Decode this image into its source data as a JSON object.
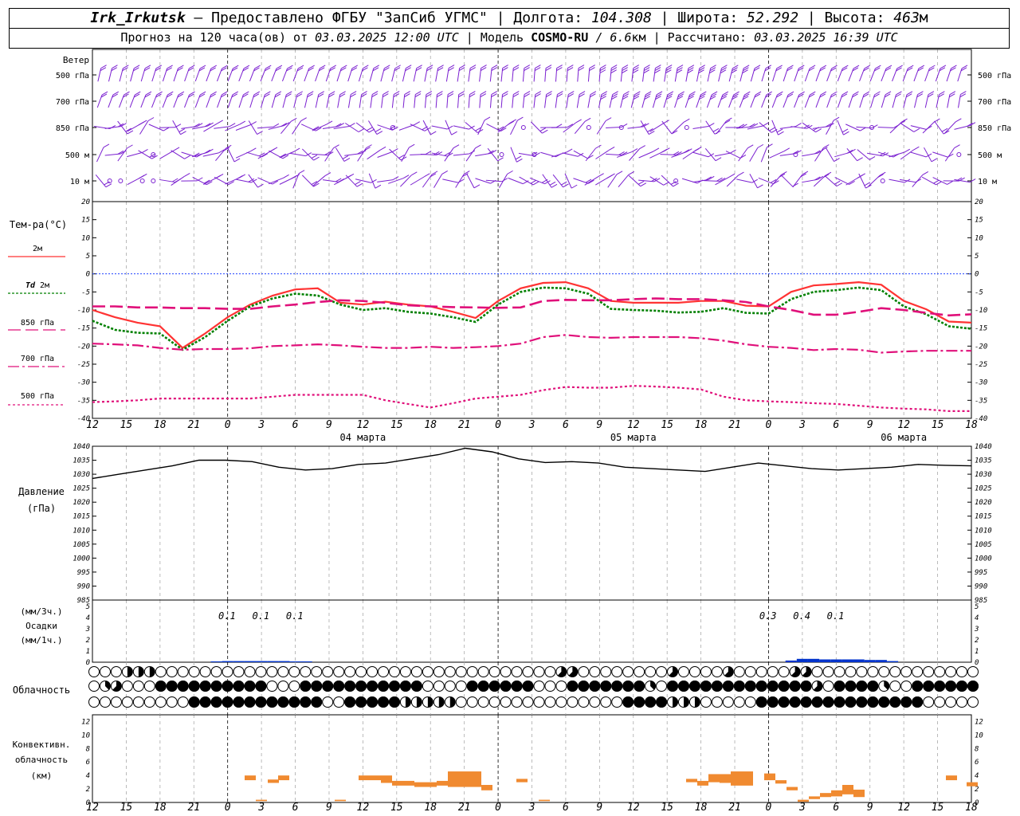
{
  "header": {
    "station": "Irk_Irkutsk",
    "provider": " — Предоставлено ФГБУ \"ЗапСиб УГМС\" | Долгота: ",
    "lon": "104.308",
    "lat_label": " | Широта: ",
    "lat": "52.292",
    "alt_label": " | Высота: ",
    "alt": "463",
    "alt_unit": "м",
    "forecast_prefix": "Прогноз на 120 часа(ов) от ",
    "forecast_from": "03.03.2025 12:00 UTC",
    "model_label": " | Модель ",
    "model": "COSMO-RU",
    "model_res": " / 6.6",
    "model_res_unit": "км",
    "calc_label": " | Рассчитано: ",
    "calc_time": "03.03.2025 16:39 UTC"
  },
  "wind_panel": {
    "title": "Ветер",
    "levels": [
      "500 гПа",
      "700 гПа",
      "850 гПа",
      "500 м",
      "10 м"
    ]
  },
  "temp_panel": {
    "title": "Тем-ра(°C)",
    "legend": [
      "2м",
      "Td 2м",
      "850 гПа",
      "700 гПа",
      "500 гПа"
    ],
    "td_prefix": "Td",
    "td_suffix": "2м"
  },
  "pressure_panel": {
    "title": "Давление",
    "unit": "(гПа)"
  },
  "precip_panel": {
    "unit1": "(мм/3ч.)",
    "title": "Осадки",
    "unit2": "(мм/1ч.)"
  },
  "cloud_panel": {
    "title": "Облачность"
  },
  "conv_panel": {
    "title1": "Конвективн.",
    "title2": "облачность",
    "unit": "(км)"
  },
  "colors": {
    "t2m": "#ff3333",
    "td": "#008000",
    "t850": "#e0107a",
    "t700": "#e0107a",
    "t500": "#e0107a",
    "pressure": "#000000",
    "precip": "#0033cc",
    "conv": "#f08a30",
    "wind": "#7a1fd0",
    "zero": "#2244ff"
  },
  "chart_data": {
    "type": "meteogram",
    "time_axis": {
      "hours_utc": [
        "12",
        "15",
        "18",
        "21",
        "0",
        "3",
        "6",
        "9",
        "12",
        "15",
        "18",
        "21",
        "0",
        "3",
        "6",
        "9",
        "12",
        "15",
        "18",
        "21",
        "0",
        "3",
        "6",
        "9",
        "12",
        "15",
        "18"
      ],
      "date_labels": [
        "04 марта",
        "05 марта",
        "06 марта"
      ]
    },
    "temperature": {
      "ylim": [
        -40,
        20
      ],
      "ticks": [
        20,
        15,
        10,
        5,
        0,
        -5,
        -10,
        -15,
        -20,
        -25,
        -30,
        -35,
        -40
      ],
      "series": [
        {
          "name": "2м",
          "values": [
            -10,
            -12,
            -13.5,
            -14.5,
            -20.5,
            -16.5,
            -12,
            -8.5,
            -6,
            -4.3,
            -4,
            -8,
            -8.5,
            -7.7,
            -8.5,
            -9,
            -10.5,
            -12.2,
            -7.5,
            -4,
            -2.5,
            -2.3,
            -4,
            -7.5,
            -8,
            -8,
            -8,
            -7.5,
            -7.5,
            -8.8,
            -9,
            -5,
            -3.2,
            -2.8,
            -2.3,
            -3,
            -7.5,
            -9.8,
            -13.2,
            -13.5
          ]
        },
        {
          "name": "Td 2м",
          "values": [
            -13,
            -15.5,
            -16.3,
            -16.5,
            -21,
            -17.5,
            -13,
            -9,
            -6.8,
            -5.5,
            -6,
            -8.5,
            -10,
            -9.5,
            -10.5,
            -11,
            -12,
            -13.3,
            -8.5,
            -5,
            -3.8,
            -4,
            -5.5,
            -9.7,
            -10,
            -10.2,
            -10.7,
            -10.5,
            -9.5,
            -10.8,
            -11,
            -7,
            -5,
            -4.5,
            -3.8,
            -4.5,
            -9,
            -11.2,
            -14.5,
            -15.2
          ]
        },
        {
          "name": "850 гПа",
          "values": [
            -9,
            -9,
            -9.3,
            -9.3,
            -9.5,
            -9.5,
            -9.7,
            -9.7,
            -9,
            -8.5,
            -7.8,
            -7.3,
            -7.5,
            -8,
            -8.7,
            -9,
            -9.2,
            -9.3,
            -9.4,
            -9.3,
            -7.5,
            -7.2,
            -7.3,
            -7.3,
            -7,
            -6.8,
            -7,
            -7,
            -7.3,
            -7.8,
            -9,
            -10,
            -11.3,
            -11.3,
            -10.5,
            -9.5,
            -10,
            -10.8,
            -11.5,
            -11.2
          ]
        },
        {
          "name": "700 гПа",
          "values": [
            -19.3,
            -19.5,
            -19.8,
            -20.5,
            -21,
            -20.8,
            -20.8,
            -20.6,
            -20,
            -19.8,
            -19.5,
            -19.8,
            -20.2,
            -20.5,
            -20.5,
            -20.2,
            -20.5,
            -20.3,
            -20,
            -19.3,
            -17.5,
            -16.9,
            -17.5,
            -17.7,
            -17.5,
            -17.5,
            -17.5,
            -17.8,
            -18.5,
            -19.5,
            -20.2,
            -20.5,
            -21.1,
            -20.8,
            -21,
            -21.8,
            -21.5,
            -21.3,
            -21.3,
            -21.3
          ]
        },
        {
          "name": "500 гПа",
          "values": [
            -35.5,
            -35.3,
            -35,
            -34.5,
            -34.5,
            -34.5,
            -34.5,
            -34.5,
            -34,
            -33.5,
            -33.5,
            -33.5,
            -33.5,
            -35,
            -36,
            -37,
            -35.8,
            -34.5,
            -34,
            -33.5,
            -32.2,
            -31.3,
            -31.5,
            -31.5,
            -31,
            -31.2,
            -31.5,
            -32,
            -34,
            -35,
            -35.3,
            -35.5,
            -35.8,
            -36,
            -36.5,
            -37,
            -37.3,
            -37.5,
            -38,
            -38
          ]
        }
      ]
    },
    "pressure": {
      "ylim": [
        985,
        1040
      ],
      "ticks": [
        1040,
        1035,
        1030,
        1025,
        1020,
        1015,
        1010,
        1005,
        1000,
        995,
        990,
        985
      ],
      "values": [
        1028.5,
        1030,
        1031.5,
        1033,
        1035,
        1035,
        1034.5,
        1032.5,
        1031.5,
        1032,
        1033.5,
        1034,
        1035.5,
        1037,
        1039.3,
        1038,
        1035.5,
        1034.2,
        1034.5,
        1034,
        1032.5,
        1032,
        1031.5,
        1031,
        1032.5,
        1034,
        1033,
        1032,
        1031.5,
        1032,
        1032.5,
        1033.5,
        1033.2,
        1033
      ]
    },
    "precipitation": {
      "ylim": [
        0,
        5
      ],
      "ticks": [
        5,
        4,
        3,
        2,
        1,
        0
      ],
      "labels_3h": [
        {
          "hour": "0",
          "day": 1,
          "value": "0.1"
        },
        {
          "hour": "3",
          "day": 1,
          "value": "0.1"
        },
        {
          "hour": "6",
          "day": 1,
          "value": "0.1"
        },
        {
          "hour": "0",
          "day": 3,
          "value": "0.3"
        },
        {
          "hour": "3",
          "day": 3,
          "value": "0.4"
        },
        {
          "hour": "6",
          "day": 3,
          "value": "0.1"
        }
      ],
      "hourly_bars_mm": [
        0.05,
        0.1,
        0.1,
        0.1,
        0.1,
        0.1,
        0.1,
        0.05,
        0.05,
        0.15,
        0.3,
        0.3,
        0.25,
        0.25,
        0.25,
        0.25,
        0.2,
        0.2,
        0.1
      ]
    },
    "cloudiness": {
      "rows": [
        "upper",
        "middle",
        "lower"
      ],
      "scale": "0=clear, 1..7 partial, 8=overcast"
    },
    "convective": {
      "ylim": [
        0,
        13
      ],
      "ticks": [
        12,
        10,
        8,
        6,
        4,
        2,
        0
      ]
    }
  }
}
